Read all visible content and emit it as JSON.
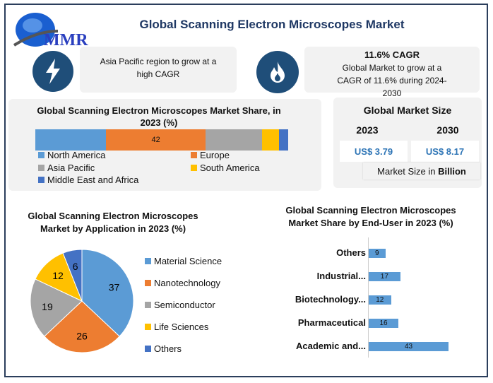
{
  "header": {
    "title": "Global Scanning Electron Microscopes Market",
    "logo_text": "MMR"
  },
  "highlight1": {
    "icon": "lightning-icon",
    "text": "Asia Pacific region to grow at a high CAGR"
  },
  "highlight2": {
    "icon": "flame-icon",
    "heading": "11.6% CAGR",
    "text": "Global Market to grow at a CAGR of 11.6% during 2024-2030"
  },
  "market_size": {
    "title": "Global Market Size",
    "year1": "2023",
    "year2": "2030",
    "value1": "US$ 3.79",
    "value2": "US$ 8.17",
    "unit_prefix": "Market Size in ",
    "unit_bold": "Billion"
  },
  "chart_data": [
    {
      "type": "bar",
      "stacked": true,
      "title": "Global Scanning Electron Microscopes Market Share, in 2023 (%)",
      "series": [
        {
          "name": "North America",
          "value": 30,
          "color": "#5b9bd5"
        },
        {
          "name": "Europe",
          "value": 42,
          "color": "#ed7d31",
          "label": "42"
        },
        {
          "name": "Asia Pacific",
          "value": 24,
          "color": "#a5a5a5"
        },
        {
          "name": "South America",
          "value": 7,
          "color": "#ffc000"
        },
        {
          "name": "Middle East and Africa",
          "value": 4,
          "color": "#4472c4"
        }
      ],
      "legend": "bottom"
    },
    {
      "type": "pie",
      "title": "Global Scanning Electron Microscopes Market by Application in 2023 (%)",
      "categories": [
        "Material Science",
        "Nanotechnology",
        "Semiconductor",
        "Life Sciences",
        "Others"
      ],
      "values": [
        37,
        26,
        19,
        12,
        6
      ],
      "colors": [
        "#5b9bd5",
        "#ed7d31",
        "#a5a5a5",
        "#ffc000",
        "#4472c4"
      ],
      "legend": "right"
    },
    {
      "type": "bar",
      "orientation": "horizontal",
      "title": "Global Scanning Electron Microscopes Market Share by End-User in 2023 (%)",
      "categories": [
        "Others",
        "Industrial...",
        "Biotechnology...",
        "Pharmaceutical",
        "Academic and..."
      ],
      "values": [
        9,
        17,
        12,
        16,
        43
      ],
      "color": "#5b9bd5"
    }
  ]
}
